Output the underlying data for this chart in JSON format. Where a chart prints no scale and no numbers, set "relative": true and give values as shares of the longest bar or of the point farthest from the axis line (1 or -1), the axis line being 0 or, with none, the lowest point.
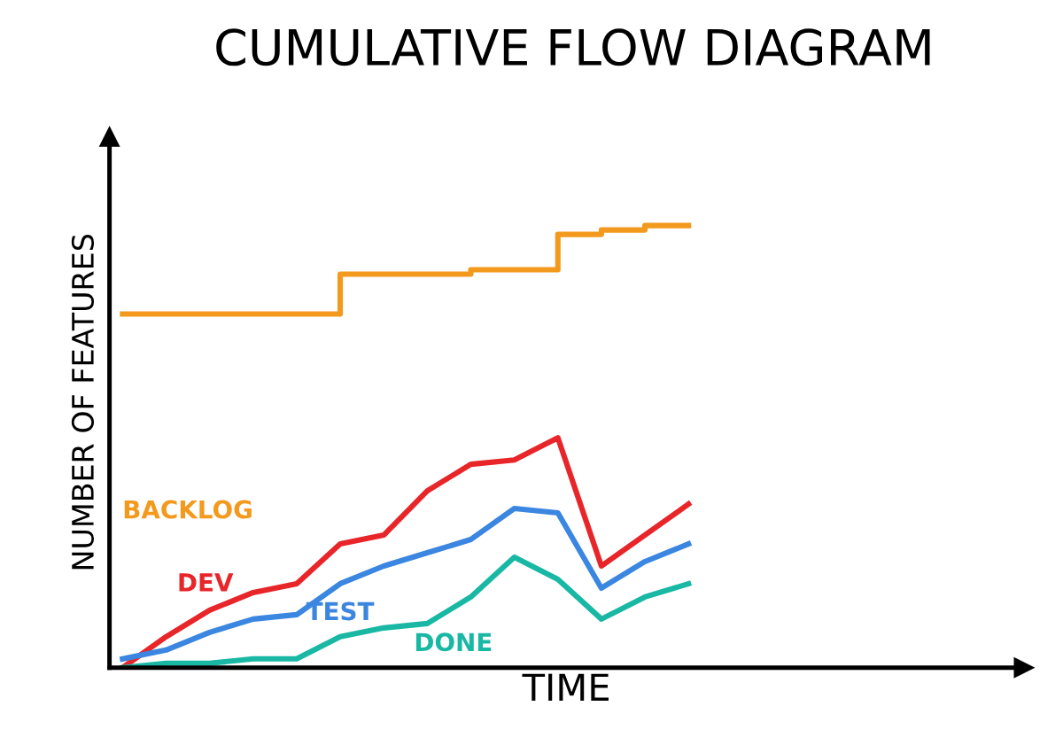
{
  "chart_data": {
    "type": "line",
    "relative": true,
    "title": "CUMULATIVE FLOW DIAGRAM",
    "xlabel": "TIME",
    "ylabel": "NUMBER OF FEATURES",
    "legend": false,
    "marker": "none",
    "line_style": "solid",
    "categories": [
      null,
      null,
      null,
      null,
      null,
      null,
      null,
      null,
      null,
      null,
      null,
      null,
      null,
      null
    ],
    "series": [
      {
        "name": "BACKLOG",
        "type": "step",
        "color": "#f39a1e",
        "values": [
          0.8,
          0.8,
          0.8,
          0.8,
          0.8,
          0.89,
          0.89,
          0.89,
          0.9,
          0.9,
          0.98,
          0.99,
          1.0,
          1.0
        ]
      },
      {
        "name": "DEV",
        "color": "#e8262a",
        "values": [
          0,
          0.07,
          0.13,
          0.17,
          0.19,
          0.28,
          0.3,
          0.4,
          0.46,
          0.47,
          0.52,
          0.23,
          0.3,
          0.37
        ]
      },
      {
        "name": "TEST",
        "color": "#3a86e0",
        "values": [
          0.02,
          0.04,
          0.08,
          0.11,
          0.12,
          0.19,
          0.23,
          0.26,
          0.29,
          0.36,
          0.35,
          0.18,
          0.24,
          0.28
        ]
      },
      {
        "name": "DONE",
        "color": "#19b8a4",
        "values": [
          0,
          0.01,
          0.01,
          0.02,
          0.02,
          0.07,
          0.09,
          0.1,
          0.16,
          0.25,
          0.2,
          0.11,
          0.16,
          0.19
        ]
      }
    ]
  }
}
